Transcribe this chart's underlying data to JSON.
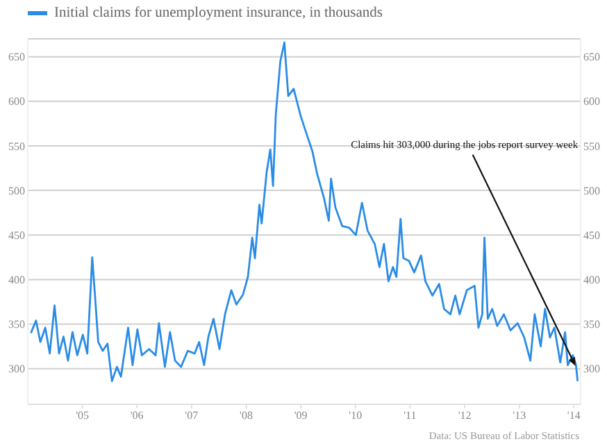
{
  "chart_data": {
    "type": "line",
    "legend": "top left",
    "grid": "y",
    "marker": "none",
    "line_style": "solid",
    "xlim": [
      "2004-07-01",
      "2014-08-15"
    ],
    "xticks": [
      {
        "value": "2005-07-01",
        "label": "'05"
      },
      {
        "value": "2006-07-01",
        "label": "'06"
      },
      {
        "value": "2007-07-01",
        "label": "'07"
      },
      {
        "value": "2008-07-01",
        "label": "'08"
      },
      {
        "value": "2009-07-01",
        "label": "'09"
      },
      {
        "value": "2010-07-01",
        "label": "'10"
      },
      {
        "value": "2011-07-01",
        "label": "'11"
      },
      {
        "value": "2012-07-01",
        "label": "'12"
      },
      {
        "value": "2013-07-01",
        "label": "'13"
      },
      {
        "value": "2014-07-01",
        "label": "'14"
      }
    ],
    "ylim": [
      260,
      670
    ],
    "yticks": [
      300,
      350,
      400,
      450,
      500,
      550,
      600,
      650
    ],
    "y2lim": [
      260,
      670
    ],
    "y2ticks": [
      300,
      350,
      400,
      450,
      500,
      550,
      600,
      650
    ],
    "x": [
      "2004-07-22",
      "2004-08-25",
      "2004-09-23",
      "2004-10-26",
      "2004-11-25",
      "2004-12-27",
      "2005-01-26",
      "2005-02-25",
      "2005-03-27",
      "2005-04-26",
      "2005-05-28",
      "2005-07-04",
      "2005-08-03",
      "2005-09-05",
      "2005-09-23",
      "2005-10-15",
      "2005-11-14",
      "2005-12-16",
      "2006-01-15",
      "2006-02-17",
      "2006-03-16",
      "2006-05-03",
      "2006-06-02",
      "2006-07-04",
      "2006-08-03",
      "2006-09-20",
      "2006-11-03",
      "2006-11-25",
      "2007-01-04",
      "2007-02-07",
      "2007-03-13",
      "2007-04-22",
      "2007-06-06",
      "2007-07-22",
      "2007-08-21",
      "2007-09-23",
      "2007-10-22",
      "2007-11-25",
      "2008-01-04",
      "2008-02-10",
      "2008-03-23",
      "2008-04-26",
      "2008-06-09",
      "2008-07-12",
      "2008-08-10",
      "2008-08-28",
      "2008-09-27",
      "2008-10-12",
      "2008-11-14",
      "2008-12-09",
      "2008-12-27",
      "2009-01-15",
      "2009-02-14",
      "2009-03-13",
      "2009-04-08",
      "2009-05-14",
      "2009-07-01",
      "2009-08-17",
      "2009-09-16",
      "2009-10-19",
      "2009-12-02",
      "2010-01-04",
      "2010-01-19",
      "2010-02-17",
      "2010-04-04",
      "2010-05-21",
      "2010-07-04",
      "2010-08-14",
      "2010-09-20",
      "2010-11-07",
      "2010-12-09",
      "2011-01-08",
      "2011-02-07",
      "2011-03-09",
      "2011-04-01",
      "2011-04-29",
      "2011-05-18",
      "2011-06-24",
      "2011-07-29",
      "2011-09-13",
      "2011-10-12",
      "2011-11-28",
      "2012-01-12",
      "2012-02-14",
      "2012-03-27",
      "2012-04-29",
      "2012-05-28",
      "2012-07-15",
      "2012-09-05",
      "2012-10-01",
      "2012-10-26",
      "2012-11-10",
      "2012-12-02",
      "2013-01-01",
      "2013-02-03",
      "2013-03-20",
      "2013-05-03",
      "2013-06-20",
      "2013-08-03",
      "2013-09-13",
      "2013-10-12",
      "2013-11-21",
      "2013-12-20",
      "2014-01-22",
      "2014-02-21",
      "2014-04-01",
      "2014-05-03",
      "2014-05-21",
      "2014-06-24",
      "2014-07-15",
      "2014-07-26"
    ],
    "series": [
      {
        "name": "Initial claims for unemployment insurance, in thousands",
        "color": "#2b8ce6",
        "values": [
          340,
          354,
          330,
          346,
          317,
          371,
          317,
          336,
          309,
          341,
          315,
          338,
          317,
          425,
          383,
          330,
          320,
          328,
          286,
          302,
          291,
          346,
          304,
          344,
          315,
          322,
          315,
          351,
          302,
          341,
          309,
          302,
          320,
          317,
          330,
          304,
          336,
          356,
          322,
          361,
          388,
          372,
          383,
          403,
          447,
          424,
          484,
          463,
          520,
          546,
          505,
          586,
          645,
          666,
          606,
          614,
          583,
          559,
          544,
          518,
          492,
          466,
          513,
          481,
          460,
          458,
          450,
          486,
          455,
          440,
          414,
          440,
          398,
          414,
          403,
          468,
          424,
          421,
          408,
          427,
          398,
          382,
          395,
          367,
          361,
          382,
          361,
          388,
          393,
          346,
          361,
          447,
          356,
          367,
          348,
          361,
          343,
          351,
          335,
          309,
          361,
          325,
          367,
          335,
          346,
          307,
          341,
          304,
          315,
          304,
          286
        ]
      }
    ],
    "annotations": [
      {
        "text": "Claims hit 303,000 during the jobs report survey week",
        "x": "2014-07-12",
        "y": 303
      },
      "Data: US Bureau of Labor Statistics"
    ]
  }
}
